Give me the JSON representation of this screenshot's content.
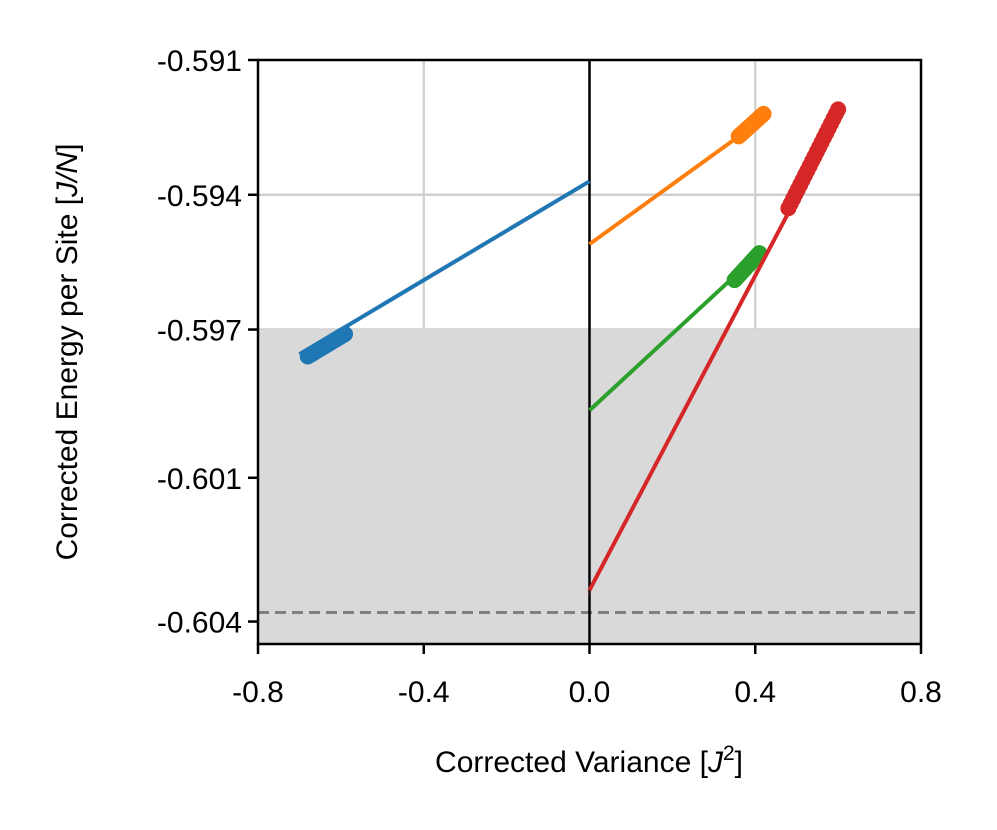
{
  "chart_data": {
    "type": "scatter",
    "title": "",
    "xlabel": "Corrected Variance",
    "xlabel_unit": "J",
    "xlabel_unit_sup": "2",
    "ylabel": "Corrected Energy per Site",
    "ylabel_unit": "J/N",
    "xlim": [
      -0.8,
      0.8
    ],
    "ylim": [
      -0.604,
      -0.591
    ],
    "xticks": [
      -0.8,
      -0.4,
      0.0,
      0.4,
      0.8
    ],
    "xtick_labels": [
      "-0.8",
      "-0.4",
      "0.0",
      "0.4",
      "0.8"
    ],
    "yticks": [
      -0.591,
      -0.594,
      -0.597,
      -0.6003,
      -0.6035
    ],
    "ytick_labels": [
      "-0.591",
      "-0.594",
      "-0.597",
      "-0.601",
      "-0.604"
    ],
    "grid": true,
    "shaded_region": {
      "y_from": -0.604,
      "y_to": -0.597,
      "color": "#d9d9d9"
    },
    "reference_line": {
      "y": -0.6033,
      "style": "dashed",
      "color": "#808080"
    },
    "zero_line": {
      "x": 0.0,
      "color": "#000000"
    },
    "series": [
      {
        "color": "#1f77b4",
        "fit": {
          "x": [
            -0.7,
            0.0
          ],
          "y": [
            -0.59755,
            -0.5937
          ]
        },
        "points": {
          "x_from": -0.68,
          "x_to": -0.59,
          "y_from": -0.5976,
          "y_to": -0.5971
        }
      },
      {
        "color": "#ff7f0e",
        "fit": {
          "x": [
            0.0,
            0.42
          ],
          "y": [
            -0.5951,
            -0.5923
          ]
        },
        "points": {
          "x_from": 0.36,
          "x_to": 0.42,
          "y_from": -0.5927,
          "y_to": -0.5922
        }
      },
      {
        "color": "#2ca02c",
        "fit": {
          "x": [
            0.0,
            0.41
          ],
          "y": [
            -0.5988,
            -0.5953
          ]
        },
        "points": {
          "x_from": 0.35,
          "x_to": 0.41,
          "y_from": -0.5959,
          "y_to": -0.5953
        }
      },
      {
        "color": "#d62728",
        "fit": {
          "x": [
            0.0,
            0.6
          ],
          "y": [
            -0.6028,
            -0.5923
          ]
        },
        "points": {
          "x_from": 0.48,
          "x_to": 0.6,
          "y_from": -0.5943,
          "y_to": -0.5921
        },
        "uncertainty_band": true
      }
    ]
  }
}
